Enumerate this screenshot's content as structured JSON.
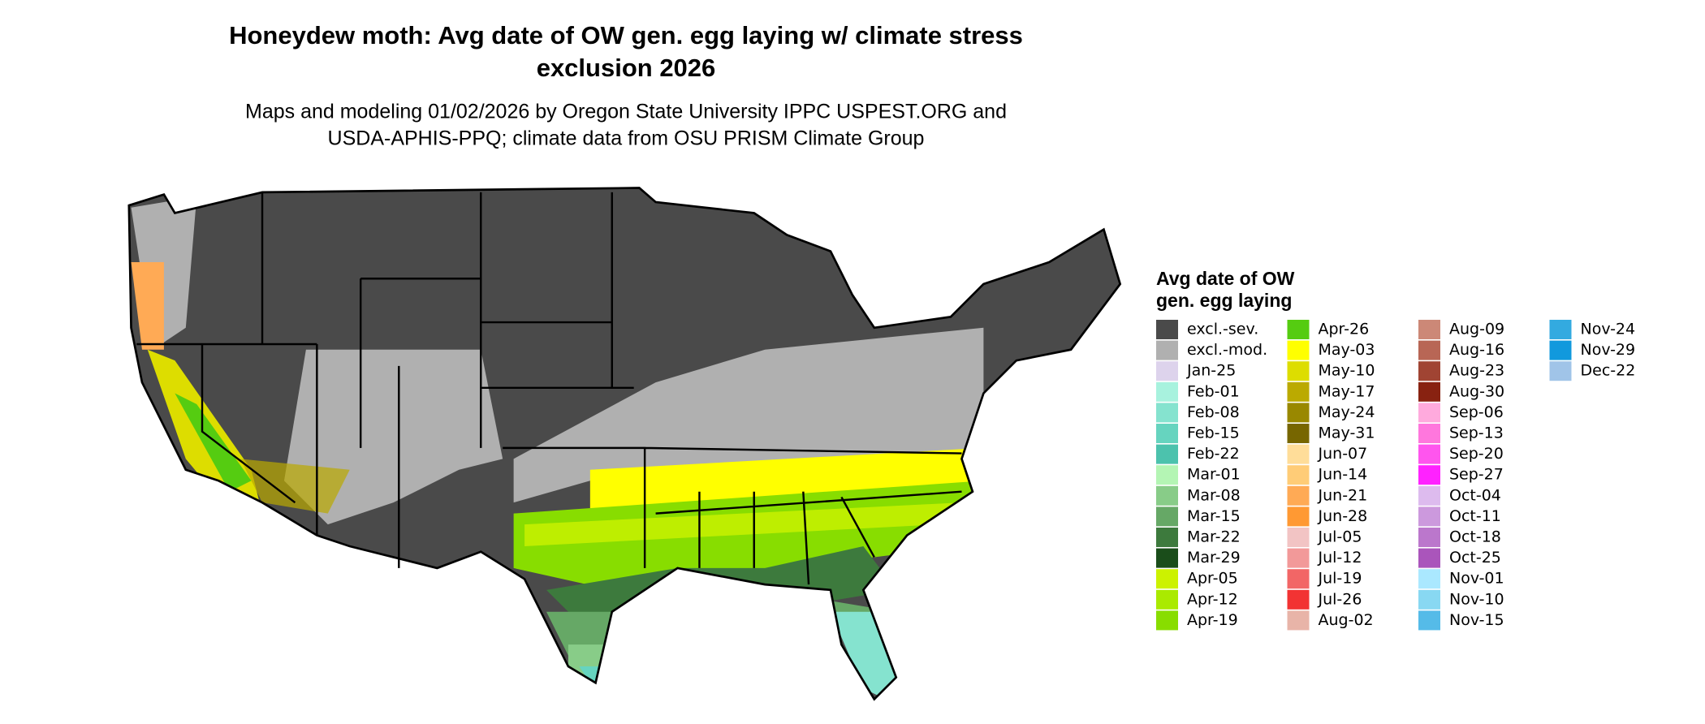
{
  "title": [
    "Honeydew moth: Avg date of OW gen. egg laying w/ climate stress",
    "exclusion 2026"
  ],
  "subtitle": [
    "Maps and modeling 01/02/2026 by Oregon State University IPPC USPEST.ORG and",
    "USDA-APHIS-PPQ; climate data from OSU PRISM Climate Group"
  ],
  "legend": {
    "title": [
      "Avg date of OW",
      "gen. egg laying"
    ],
    "items": [
      {
        "label": "excl.-sev.",
        "color": "#4a4a4a"
      },
      {
        "label": "excl.-mod.",
        "color": "#b0b0b0"
      },
      {
        "label": "Jan-25",
        "color": "#ddd3ec"
      },
      {
        "label": "Feb-01",
        "color": "#a8f2de"
      },
      {
        "label": "Feb-08",
        "color": "#85e3cf"
      },
      {
        "label": "Feb-15",
        "color": "#66d4bf"
      },
      {
        "label": "Feb-22",
        "color": "#4cc2ad"
      },
      {
        "label": "Mar-01",
        "color": "#b4f5b4"
      },
      {
        "label": "Mar-08",
        "color": "#88cc88"
      },
      {
        "label": "Mar-15",
        "color": "#66a866"
      },
      {
        "label": "Mar-22",
        "color": "#3d7a3d"
      },
      {
        "label": "Mar-29",
        "color": "#1a4d1a"
      },
      {
        "label": "Apr-05",
        "color": "#ccf200"
      },
      {
        "label": "Apr-12",
        "color": "#aaea00"
      },
      {
        "label": "Apr-19",
        "color": "#88dd00"
      },
      {
        "label": "Apr-26",
        "color": "#55cc11"
      },
      {
        "label": "May-03",
        "color": "#ffff00"
      },
      {
        "label": "May-10",
        "color": "#dddd00"
      },
      {
        "label": "May-17",
        "color": "#bbaa00"
      },
      {
        "label": "May-24",
        "color": "#998800"
      },
      {
        "label": "May-31",
        "color": "#776600"
      },
      {
        "label": "Jun-07",
        "color": "#ffdd99"
      },
      {
        "label": "Jun-14",
        "color": "#ffcc77"
      },
      {
        "label": "Jun-21",
        "color": "#ffaa55"
      },
      {
        "label": "Jun-28",
        "color": "#ff9933"
      },
      {
        "label": "Jul-05",
        "color": "#f2c4c4"
      },
      {
        "label": "Jul-12",
        "color": "#f29999"
      },
      {
        "label": "Jul-19",
        "color": "#f26666"
      },
      {
        "label": "Jul-26",
        "color": "#f23333"
      },
      {
        "label": "Aug-02",
        "color": "#e8b4a8"
      },
      {
        "label": "Aug-09",
        "color": "#cc8877"
      },
      {
        "label": "Aug-16",
        "color": "#b86655"
      },
      {
        "label": "Aug-23",
        "color": "#a04433"
      },
      {
        "label": "Aug-30",
        "color": "#882211"
      },
      {
        "label": "Sep-06",
        "color": "#ffaadd"
      },
      {
        "label": "Sep-13",
        "color": "#ff77dd"
      },
      {
        "label": "Sep-20",
        "color": "#ff55ee"
      },
      {
        "label": "Sep-27",
        "color": "#ff22ff"
      },
      {
        "label": "Oct-04",
        "color": "#ddbbee"
      },
      {
        "label": "Oct-11",
        "color": "#cc99dd"
      },
      {
        "label": "Oct-18",
        "color": "#bb77cc"
      },
      {
        "label": "Oct-25",
        "color": "#aa55bb"
      },
      {
        "label": "Nov-01",
        "color": "#aae8ff"
      },
      {
        "label": "Nov-10",
        "color": "#88d8f2"
      },
      {
        "label": "Nov-15",
        "color": "#55bbe8"
      },
      {
        "label": "Nov-24",
        "color": "#33aae0"
      },
      {
        "label": "Nov-29",
        "color": "#1199dd"
      },
      {
        "label": "Dec-22",
        "color": "#a0c4e8"
      }
    ]
  }
}
